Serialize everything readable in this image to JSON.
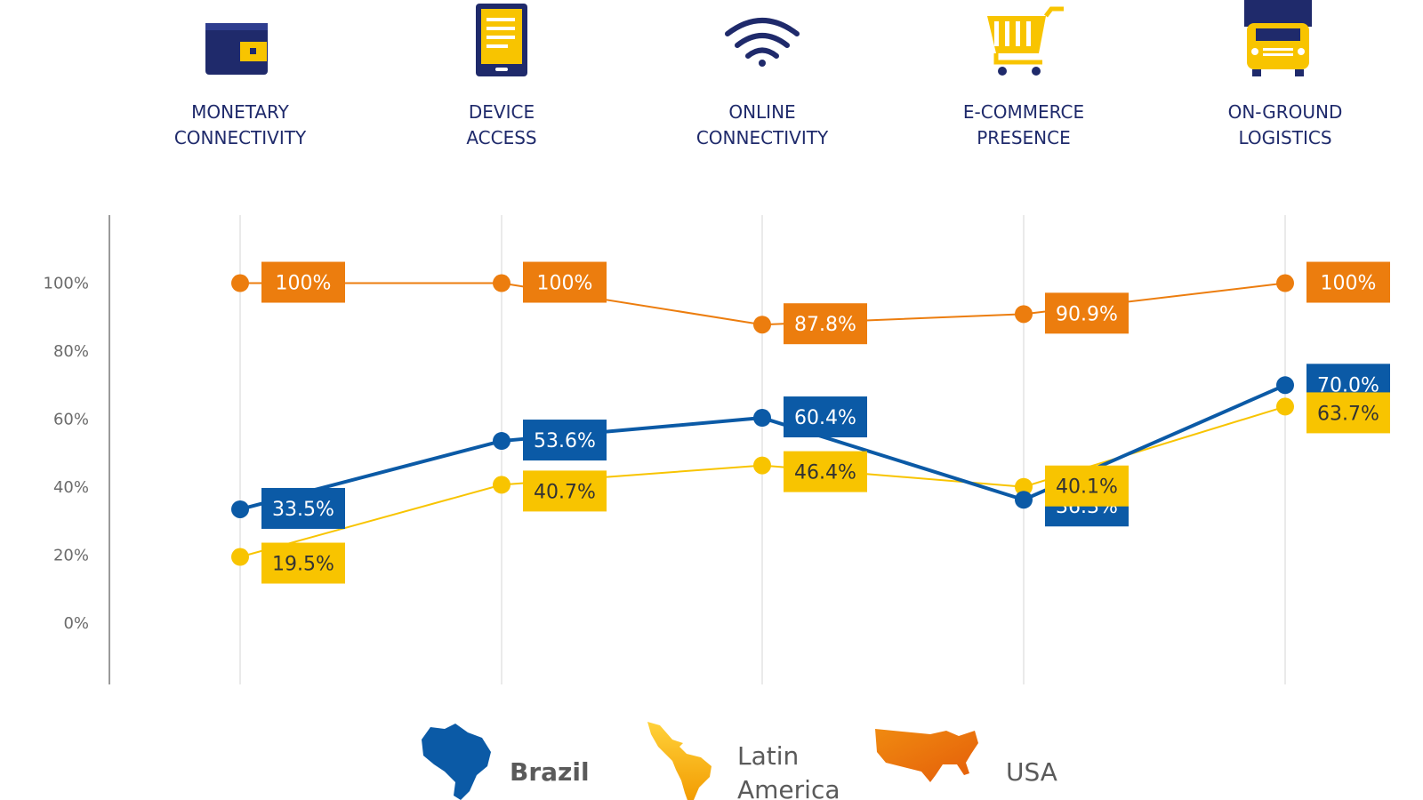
{
  "chart_data": {
    "type": "line",
    "categories": [
      {
        "lines": [
          "MONETARY",
          "CONNECTIVITY"
        ],
        "icon": "wallet-icon"
      },
      {
        "lines": [
          "DEVICE",
          "ACCESS"
        ],
        "icon": "tablet-icon"
      },
      {
        "lines": [
          "ONLINE",
          "CONNECTIVITY"
        ],
        "icon": "wifi-icon"
      },
      {
        "lines": [
          "E-COMMERCE",
          "PRESENCE"
        ],
        "icon": "shopping-cart-icon"
      },
      {
        "lines": [
          "ON-GROUND",
          "LOGISTICS"
        ],
        "icon": "delivery-truck-icon"
      }
    ],
    "ylim": [
      -18,
      120
    ],
    "yticks": [
      0,
      20,
      40,
      60,
      80,
      100
    ],
    "ytick_labels": [
      "0%",
      "20%",
      "40%",
      "60%",
      "80%",
      "100%"
    ],
    "grid": "vertical",
    "legend_position": "bottom",
    "series": [
      {
        "name": "USA",
        "key": "usa",
        "color": "#ec7d0e",
        "text_color": "#ffffff",
        "values": [
          100,
          100,
          87.8,
          90.9,
          100
        ],
        "labels": [
          "100%",
          "100%",
          "87.8%",
          "90.9%",
          "100%"
        ],
        "label_side": [
          "above",
          "above",
          "above",
          "above",
          "above"
        ]
      },
      {
        "name": "Brazil",
        "key": "brazil",
        "color": "#0b5aa6",
        "text_color": "#ffffff",
        "values": [
          33.5,
          53.6,
          60.4,
          36.3,
          70.0
        ],
        "labels": [
          "33.5%",
          "53.6%",
          "60.4%",
          "36.3%",
          "70.0%"
        ],
        "label_side": [
          "above",
          "above",
          "above",
          "below",
          "above"
        ]
      },
      {
        "name": "Latin America",
        "key": "latam",
        "color": "#f8c400",
        "text_color": "#333333",
        "values": [
          19.5,
          40.7,
          46.4,
          40.1,
          63.7
        ],
        "labels": [
          "19.5%",
          "40.7%",
          "46.4%",
          "40.1%",
          "63.7%"
        ],
        "label_side": [
          "below",
          "below",
          "below",
          "above",
          "below"
        ]
      }
    ]
  },
  "legend": [
    {
      "lines": [
        "Brazil"
      ],
      "icon": "brazil-map-icon",
      "color": "#0b5aa6",
      "bold": true
    },
    {
      "lines": [
        "Latin",
        "America"
      ],
      "icon": "latin-america-map-icon",
      "color": "#f5b000",
      "bold": false
    },
    {
      "lines": [
        "USA"
      ],
      "icon": "usa-map-icon",
      "color": "#e8730c",
      "bold": false
    }
  ]
}
